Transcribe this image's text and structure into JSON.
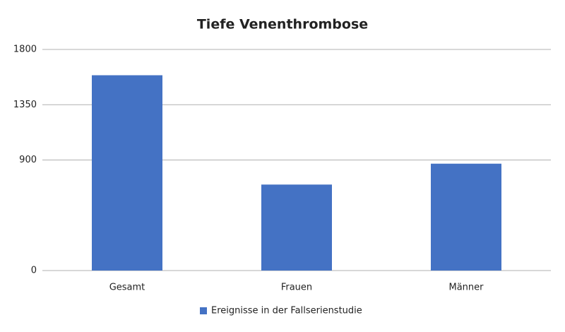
{
  "chart_data": {
    "type": "bar",
    "title": "Tiefe Venenthrombose",
    "categories": [
      "Gesamt",
      "Frauen",
      "Männer"
    ],
    "series": [
      {
        "name": "Ereignisse in der Fallserienstudie",
        "color": "#4472c4",
        "values": [
          1590,
          700,
          870
        ]
      }
    ],
    "ylim": [
      0,
      1800
    ],
    "yticks": [
      0,
      900,
      1350,
      1800
    ],
    "grid": true,
    "legend": "bottom"
  }
}
